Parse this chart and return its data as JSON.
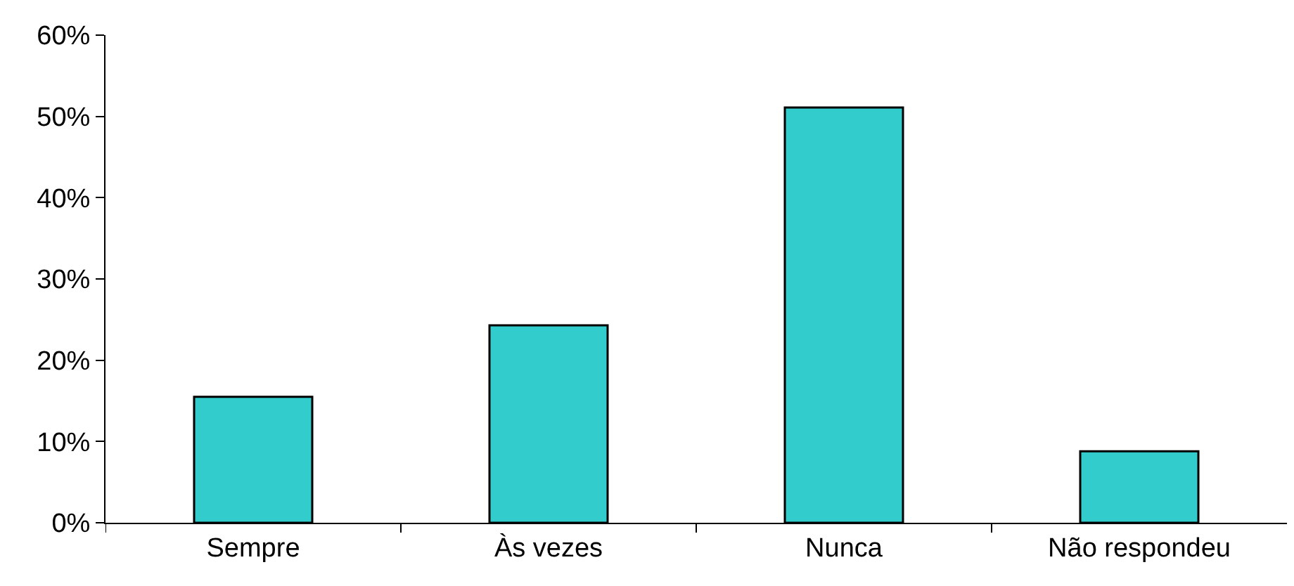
{
  "chart_data": {
    "type": "bar",
    "categories": [
      "Sempre",
      "Às vezes",
      "Nunca",
      "Não respondeu"
    ],
    "values": [
      15.5,
      24.3,
      51.1,
      8.8
    ],
    "color": "#33cccc",
    "ylim": [
      0,
      60
    ],
    "yticks": [
      {
        "value": 0,
        "label": "0%"
      },
      {
        "value": 10,
        "label": "10%"
      },
      {
        "value": 20,
        "label": "20%"
      },
      {
        "value": 30,
        "label": "30%"
      },
      {
        "value": 40,
        "label": "40%"
      },
      {
        "value": 50,
        "label": "50%"
      },
      {
        "value": 60,
        "label": "60%"
      }
    ]
  }
}
